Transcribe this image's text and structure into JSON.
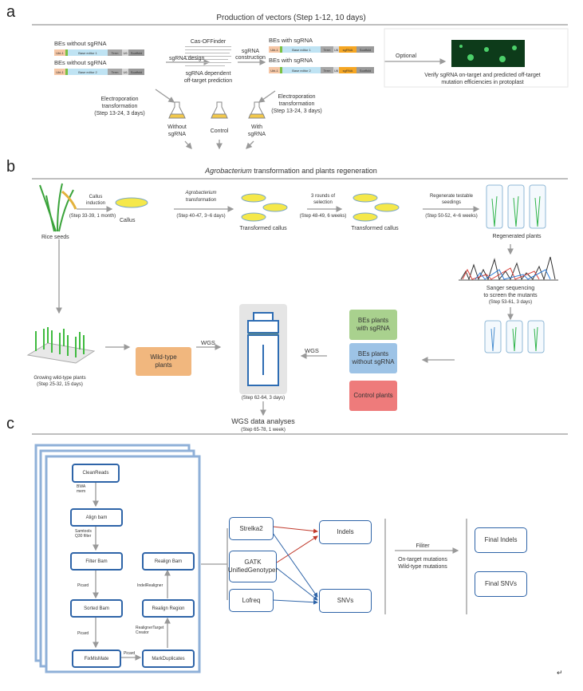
{
  "panel_a": {
    "letter": "a",
    "title": "Production of vectors (Step 1-12, 10 days)",
    "bes_without_1": "BEs without sgRNA",
    "bes_without_2": "BEs without sgRNA",
    "bes_with_1": "BEs with sgRNA",
    "bes_with_2": "BEs with sgRNA",
    "construct": {
      "promoter": "Ubi-1",
      "editor1": "Base editor 1",
      "editor2": "Base editor 2",
      "term": "Term",
      "u6": "U6",
      "sgrna": "sgRNA",
      "scaffold": "Scaffold"
    },
    "sgrna_design": "sgRNA design",
    "cas_offinder": "Cas-OFFinder",
    "offtarget_1": "sgRNA dependent",
    "offtarget_2": "off-target prediction",
    "construction_1": "sgRNA",
    "construction_2": "construction",
    "optional": "Optional",
    "verify_1": "Verify sgRNA on-target and predicted off-target",
    "verify_2": "mutation efficiencies in protoplast",
    "electro_1": "Electroporation",
    "electro_2": "transformation",
    "electro_3": "(Step 13-24, 3 days)",
    "flask_without_1": "Without",
    "flask_without_2": "sgRNA",
    "flask_control": "Control",
    "flask_with_1": "With",
    "flask_with_2": "sgRNA"
  },
  "panel_b": {
    "letter": "b",
    "title_italic": "Agrobacterium",
    "title_rest": " transformation and plants regeneration",
    "rice_seeds": "Rice seeds",
    "callus_induction_1": "Callus",
    "callus_induction_2": "induction",
    "step_33": "(Step 33-39, 1 month)",
    "callus": "Callus",
    "agro_1": "Agrobacterium",
    "agro_2": "transformation",
    "step_40": "(Step 40-47, 3~6 days)",
    "transformed_1": "Transformed callus",
    "selection_1": "3 rounds of",
    "selection_2": "selection",
    "step_48": "(Step 48-49, 6 weeks)",
    "transformed_2": "Transformed callus",
    "regen_1": "Regenerate testable",
    "regen_2": "seedings",
    "step_50": "(Step 50-52, 4~6 weeks)",
    "regenerated": "Regenerated plants",
    "sanger_1": "Sanger sequencing",
    "sanger_2": "to screen the mutants",
    "step_53": "(Step 53-61, 3 days)",
    "growing": "Growing wild-type plants",
    "step_25": "(Step 25-32, 15 days)",
    "wild_type_1": "Wild-type",
    "wild_type_2": "plants",
    "wgs_left": "WGS",
    "wgs_right": "WGS",
    "step_62": "(Step 62-64, 3 days)",
    "bes_with_1": "BEs plants",
    "bes_with_2": "with sgRNA",
    "bes_without_1": "BEs plants",
    "bes_without_2": "without sgRNA",
    "control": "Control plants",
    "wgs_analyses": "WGS data analyses",
    "step_65": "(Step 65-78, 1 week)",
    "colors": {
      "wild_type": "#f1b77e",
      "with": "#a9d18e",
      "without": "#9dc3e6",
      "control": "#ee7b7b"
    }
  },
  "panel_c": {
    "letter": "c",
    "nodes": {
      "clean": "CleanReads",
      "align": "Align bam",
      "filter": "Filter Bam",
      "sorted": "Sorted Bam",
      "fix": "FixMisMate",
      "markdup": "MarkDuplicates",
      "region": "Realign Region",
      "realign": "Realign Bam"
    },
    "edges": {
      "bwa_1": "BWA",
      "bwa_2": "mem",
      "samtools_1": "Samtools",
      "samtools_2": "Q30 filter",
      "picard_1": "Picard",
      "picard_2": "Picard",
      "picard_3": "Picard",
      "rtc_1": "RealignerTarget",
      "rtc_2": "Creator",
      "indel": "IndelRealigner"
    },
    "callers": {
      "strelka": "Strelka2",
      "gatk_1": "GATK",
      "gatk_2": "UnifiedGenotyper",
      "lofreq": "Lofreq"
    },
    "indels": "Indels",
    "snvs": "SNVs",
    "filter": "Filiter",
    "filter_1": "On-target mutations",
    "filter_2": "Wild-type mutations",
    "final_indels": "Final Indels",
    "final_snvs": "Final SNVs"
  },
  "return_mark": "↵"
}
